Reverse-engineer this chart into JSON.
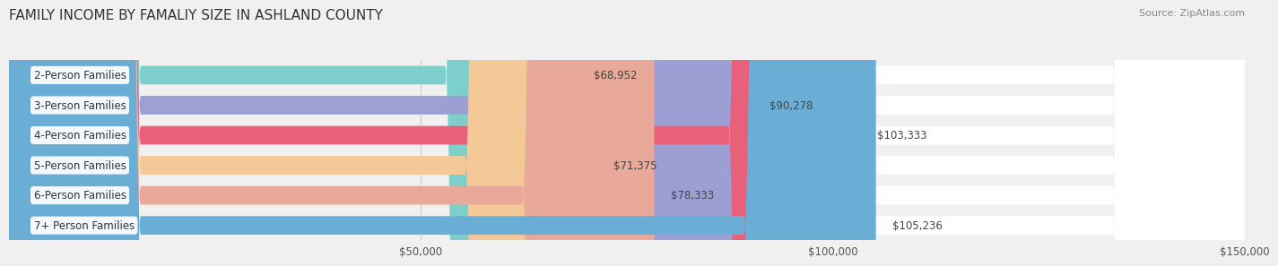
{
  "title": "FAMILY INCOME BY FAMALIY SIZE IN ASHLAND COUNTY",
  "source": "Source: ZipAtlas.com",
  "categories": [
    "2-Person Families",
    "3-Person Families",
    "4-Person Families",
    "5-Person Families",
    "6-Person Families",
    "7+ Person Families"
  ],
  "values": [
    68952,
    90278,
    103333,
    71375,
    78333,
    105236
  ],
  "bar_colors": [
    "#7dcfcb",
    "#9b9fd4",
    "#e8607a",
    "#f5c897",
    "#e8a89a",
    "#6aaed6"
  ],
  "value_labels": [
    "$68,952",
    "$90,278",
    "$103,333",
    "$71,375",
    "$78,333",
    "$105,236"
  ],
  "xlim": [
    0,
    150000
  ],
  "xticks": [
    0,
    50000,
    100000,
    150000
  ],
  "xtick_labels": [
    "",
    "$50,000",
    "$100,000",
    "$150,000"
  ],
  "bar_height": 0.62,
  "background_color": "#f0f0f0",
  "title_fontsize": 11,
  "label_fontsize": 8.5,
  "value_fontsize": 8.5,
  "source_fontsize": 8
}
